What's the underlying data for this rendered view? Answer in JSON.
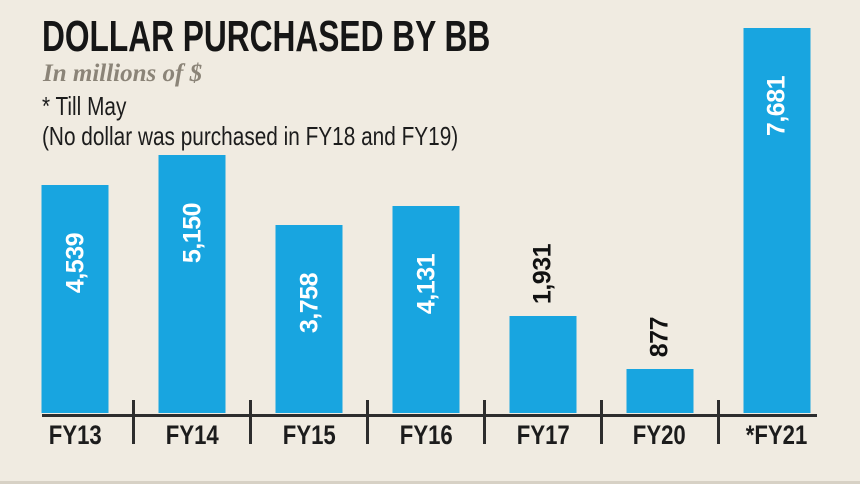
{
  "header": {
    "title": "DOLLAR PURCHASED BY BB",
    "subtitle": "In millions of $",
    "notes": [
      "* Till May",
      "(No dollar was purchased in FY18 and FY19)"
    ]
  },
  "chart_data": {
    "type": "bar",
    "title": "DOLLAR PURCHASED BY BB",
    "subtitle": "In millions of $",
    "annotations": [
      "* Till May",
      "(No dollar was purchased in FY18 and FY19)"
    ],
    "categories": [
      "FY13",
      "FY14",
      "FY15",
      "FY16",
      "FY17",
      "FY20",
      "*FY21"
    ],
    "values": [
      4539,
      5150,
      3758,
      4131,
      1931,
      877,
      7681
    ],
    "value_labels": [
      "4,539",
      "5,150",
      "3,758",
      "4,131",
      "1,931",
      "877",
      "7,681"
    ],
    "value_label_placement": [
      "inside",
      "inside",
      "inside",
      "inside",
      "above",
      "above",
      "inside"
    ],
    "value_label_orientation": "vertical-bottom-to-top",
    "xlabel": "",
    "ylabel": "",
    "ylim": [
      0,
      7681
    ],
    "grid": false,
    "legend": false,
    "colors": {
      "bar": "#18a5e0",
      "value_inside": "#ffffff",
      "value_above": "#111111",
      "axis": "#2d2d2d",
      "background": "#f0ebe1",
      "title": "#161616",
      "subtitle": "#8b8478"
    }
  }
}
